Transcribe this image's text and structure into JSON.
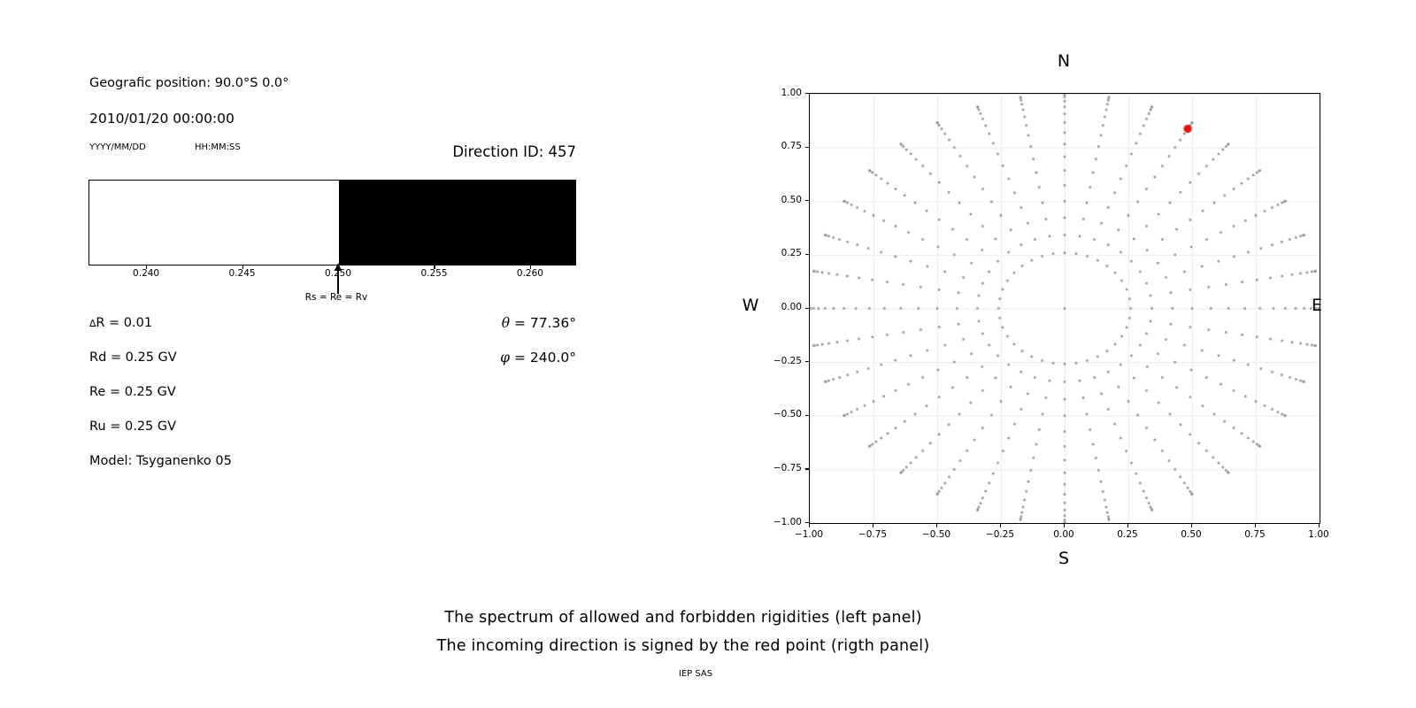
{
  "left_panel": {
    "geo_position": "Geografic position: 90.0°S 0.0°",
    "datetime": "2010/01/20 00:00:00",
    "date_format_hint": "YYYY/MM/DD",
    "time_format_hint": "HH:MM:SS",
    "direction_id": "Direction ID: 457",
    "delta_symbol": "∆",
    "delta_rest": "R = 0.01",
    "rd": "Rd = 0.25 GV",
    "re": "Re = 0.25 GV",
    "ru": "Ru = 0.25 GV",
    "model": "Model: Tsyganenko 05",
    "theta_symbol": "θ",
    "theta_value": " = 77.36°",
    "phi_symbol": "φ",
    "phi_value": " = 240.0°"
  },
  "captions": {
    "line1": "The spectrum of allowed and forbidden rigidities (left panel)",
    "line2": "The incoming direction is signed by the red point (rigth panel)",
    "credit": "IEP SAS"
  },
  "chart_data": [
    {
      "id": "rigidity-spectrum",
      "type": "bar",
      "description": "Spectrum of allowed (white) and forbidden (black) rigidities in GV",
      "xlim": [
        0.237,
        0.2624
      ],
      "xticks": [
        0.24,
        0.245,
        0.25,
        0.255,
        0.26
      ],
      "xtick_labels": [
        "0.240",
        "0.245",
        "0.250",
        "0.255",
        "0.260"
      ],
      "segments": [
        {
          "name": "allowed",
          "from": 0.237,
          "to": 0.25,
          "color": "#ffffff"
        },
        {
          "name": "forbidden",
          "from": 0.25,
          "to": 0.2624,
          "color": "#000000"
        }
      ],
      "annotation": {
        "text": "Rs = Re = Rv",
        "x": 0.25
      }
    },
    {
      "id": "direction-map",
      "type": "scatter",
      "description": "All computed incoming directions (gray); selected direction ID 457 in red",
      "xlim": [
        -1,
        1
      ],
      "ylim": [
        -1,
        1
      ],
      "xticks": [
        -1.0,
        -0.75,
        -0.5,
        -0.25,
        0.0,
        0.25,
        0.5,
        0.75,
        1.0
      ],
      "yticks": [
        1.0,
        0.75,
        0.5,
        0.25,
        0.0,
        -0.25,
        -0.5,
        -0.75,
        -1.0
      ],
      "xtick_labels": [
        "−1.00",
        "−0.75",
        "−0.50",
        "−0.25",
        "0.00",
        "0.25",
        "0.50",
        "0.75",
        "1.00"
      ],
      "ytick_labels": [
        "1.00",
        "0.75",
        "0.50",
        "0.25",
        "0.00",
        "−0.25",
        "−0.50",
        "−0.75",
        "−1.00"
      ],
      "grid": true,
      "grid_color": "#ebebeb",
      "compass": {
        "top": "N",
        "bottom": "S",
        "left": "W",
        "right": "E"
      },
      "dot_color": "#8a8a8a",
      "directions_grid": {
        "azimuth_start_deg": 0,
        "azimuth_step_deg": 10,
        "azimuth_count": 36,
        "zenith_min_deg": 15,
        "zenith_max_deg": 90,
        "zenith_step_deg": 5,
        "radius_mapping": "sin(zenith)",
        "x_mapping": "sin(zenith)*sin(azimuth)",
        "y_mapping": "sin(zenith)*cos(azimuth)",
        "includes_center_point": true
      },
      "red_point": {
        "x": 0.483,
        "y": 0.837,
        "color": "#e41111"
      }
    }
  ]
}
